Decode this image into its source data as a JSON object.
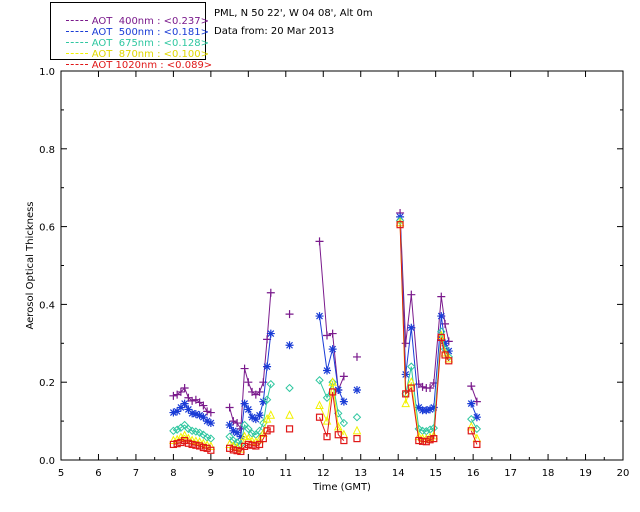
{
  "info": {
    "station": "PML, N 50 22', W 04 08', Alt 0m",
    "date_line": "Data from: 20 Mar 2013"
  },
  "chart_data": {
    "type": "scatter",
    "xlabel": "Time (GMT)",
    "ylabel": "Aerosol Optical Thickness",
    "xlim": [
      5,
      20
    ],
    "ylim": [
      0,
      1.0
    ],
    "xticks": [
      "5",
      "6",
      "7",
      "8",
      "9",
      "10",
      "11",
      "12",
      "13",
      "14",
      "15",
      "16",
      "17",
      "18",
      "19",
      "20"
    ],
    "yticks": [
      "0.0",
      "0.2",
      "0.4",
      "0.6",
      "0.8",
      "1.0"
    ],
    "legend_position": "top-left (outside plot)",
    "series": [
      {
        "name": "AOT  400nm : <0.237>",
        "color": "#7a1a8c",
        "marker": "plus",
        "segments": [
          [
            [
              8.0,
              0.165
            ],
            [
              8.1,
              0.168
            ],
            [
              8.2,
              0.175
            ],
            [
              8.3,
              0.185
            ],
            [
              8.4,
              0.16
            ],
            [
              8.5,
              0.152
            ],
            [
              8.6,
              0.155
            ],
            [
              8.7,
              0.148
            ],
            [
              8.8,
              0.14
            ],
            [
              8.9,
              0.125
            ],
            [
              9.0,
              0.122
            ]
          ],
          [
            [
              9.5,
              0.135
            ],
            [
              9.6,
              0.1
            ],
            [
              9.7,
              0.095
            ],
            [
              9.8,
              0.08
            ],
            [
              9.9,
              0.235
            ],
            [
              10.0,
              0.2
            ],
            [
              10.1,
              0.175
            ],
            [
              10.2,
              0.168
            ],
            [
              10.3,
              0.175
            ],
            [
              10.4,
              0.2
            ],
            [
              10.5,
              0.31
            ],
            [
              10.6,
              0.43
            ]
          ],
          [
            [
              11.1,
              0.375
            ]
          ],
          [
            [
              11.9,
              0.562
            ],
            [
              12.1,
              0.32
            ],
            [
              12.25,
              0.325
            ],
            [
              12.4,
              0.18
            ],
            [
              12.55,
              0.215
            ]
          ],
          [
            [
              12.9,
              0.265
            ]
          ],
          [
            [
              14.05,
              0.635
            ],
            [
              14.2,
              0.3
            ],
            [
              14.35,
              0.425
            ],
            [
              14.55,
              0.195
            ],
            [
              14.65,
              0.188
            ],
            [
              14.75,
              0.185
            ],
            [
              14.85,
              0.185
            ],
            [
              14.95,
              0.198
            ],
            [
              15.15,
              0.42
            ],
            [
              15.25,
              0.35
            ],
            [
              15.35,
              0.305
            ]
          ],
          [
            [
              15.95,
              0.19
            ],
            [
              16.1,
              0.15
            ]
          ]
        ]
      },
      {
        "name": "AOT  500nm : <0.181>",
        "color": "#1a3cd6",
        "marker": "star",
        "segments": [
          [
            [
              8.0,
              0.122
            ],
            [
              8.1,
              0.125
            ],
            [
              8.2,
              0.135
            ],
            [
              8.3,
              0.145
            ],
            [
              8.4,
              0.13
            ],
            [
              8.5,
              0.12
            ],
            [
              8.6,
              0.118
            ],
            [
              8.7,
              0.115
            ],
            [
              8.8,
              0.11
            ],
            [
              8.9,
              0.1
            ],
            [
              9.0,
              0.095
            ]
          ],
          [
            [
              9.5,
              0.09
            ],
            [
              9.6,
              0.075
            ],
            [
              9.7,
              0.07
            ],
            [
              9.8,
              0.06
            ],
            [
              9.9,
              0.145
            ],
            [
              10.0,
              0.13
            ],
            [
              10.1,
              0.11
            ],
            [
              10.2,
              0.105
            ],
            [
              10.3,
              0.115
            ],
            [
              10.4,
              0.15
            ],
            [
              10.5,
              0.24
            ],
            [
              10.6,
              0.325
            ]
          ],
          [
            [
              11.1,
              0.295
            ]
          ],
          [
            [
              11.9,
              0.37
            ],
            [
              12.1,
              0.23
            ],
            [
              12.25,
              0.285
            ],
            [
              12.4,
              0.18
            ],
            [
              12.55,
              0.15
            ]
          ],
          [
            [
              12.9,
              0.18
            ]
          ],
          [
            [
              14.05,
              0.625
            ],
            [
              14.2,
              0.22
            ],
            [
              14.35,
              0.34
            ],
            [
              14.55,
              0.135
            ],
            [
              14.65,
              0.128
            ],
            [
              14.75,
              0.128
            ],
            [
              14.85,
              0.13
            ],
            [
              14.95,
              0.135
            ],
            [
              15.15,
              0.37
            ],
            [
              15.25,
              0.3
            ],
            [
              15.35,
              0.28
            ]
          ],
          [
            [
              15.95,
              0.145
            ],
            [
              16.1,
              0.11
            ]
          ]
        ]
      },
      {
        "name": "AOT  675nm : <0.128>",
        "color": "#2fc7a0",
        "marker": "diamond",
        "segments": [
          [
            [
              8.0,
              0.075
            ],
            [
              8.1,
              0.078
            ],
            [
              8.2,
              0.083
            ],
            [
              8.3,
              0.09
            ],
            [
              8.4,
              0.08
            ],
            [
              8.5,
              0.075
            ],
            [
              8.6,
              0.073
            ],
            [
              8.7,
              0.07
            ],
            [
              8.8,
              0.065
            ],
            [
              8.9,
              0.058
            ],
            [
              9.0,
              0.055
            ]
          ],
          [
            [
              9.5,
              0.06
            ],
            [
              9.6,
              0.05
            ],
            [
              9.7,
              0.045
            ],
            [
              9.8,
              0.04
            ],
            [
              9.9,
              0.09
            ],
            [
              10.0,
              0.08
            ],
            [
              10.1,
              0.068
            ],
            [
              10.2,
              0.065
            ],
            [
              10.3,
              0.075
            ],
            [
              10.4,
              0.095
            ],
            [
              10.5,
              0.155
            ],
            [
              10.6,
              0.195
            ]
          ],
          [
            [
              11.1,
              0.185
            ]
          ],
          [
            [
              11.9,
              0.205
            ],
            [
              12.1,
              0.16
            ],
            [
              12.25,
              0.2
            ],
            [
              12.4,
              0.12
            ],
            [
              12.55,
              0.095
            ]
          ],
          [
            [
              12.9,
              0.11
            ]
          ],
          [
            [
              14.05,
              0.615
            ],
            [
              14.2,
              0.17
            ],
            [
              14.35,
              0.24
            ],
            [
              14.55,
              0.08
            ],
            [
              14.65,
              0.075
            ],
            [
              14.75,
              0.074
            ],
            [
              14.85,
              0.078
            ],
            [
              14.95,
              0.082
            ],
            [
              15.15,
              0.33
            ],
            [
              15.25,
              0.285
            ],
            [
              15.35,
              0.265
            ]
          ],
          [
            [
              15.95,
              0.105
            ],
            [
              16.1,
              0.08
            ]
          ]
        ]
      },
      {
        "name": "AOT  870nm : <0.100>",
        "color": "#f2f200",
        "marker": "triangle",
        "segments": [
          [
            [
              8.0,
              0.05
            ],
            [
              8.1,
              0.052
            ],
            [
              8.2,
              0.058
            ],
            [
              8.3,
              0.063
            ],
            [
              8.4,
              0.055
            ],
            [
              8.5,
              0.05
            ],
            [
              8.6,
              0.048
            ],
            [
              8.7,
              0.046
            ],
            [
              8.8,
              0.042
            ],
            [
              8.9,
              0.038
            ],
            [
              9.0,
              0.035
            ]
          ],
          [
            [
              9.5,
              0.04
            ],
            [
              9.6,
              0.035
            ],
            [
              9.7,
              0.032
            ],
            [
              9.8,
              0.028
            ],
            [
              9.9,
              0.06
            ],
            [
              10.0,
              0.055
            ],
            [
              10.1,
              0.048
            ],
            [
              10.2,
              0.046
            ],
            [
              10.3,
              0.052
            ],
            [
              10.4,
              0.068
            ],
            [
              10.5,
              0.105
            ],
            [
              10.6,
              0.115
            ]
          ],
          [
            [
              11.1,
              0.115
            ]
          ],
          [
            [
              11.9,
              0.14
            ],
            [
              12.1,
              0.1
            ],
            [
              12.25,
              0.2
            ],
            [
              12.4,
              0.085
            ],
            [
              12.55,
              0.065
            ]
          ],
          [
            [
              12.9,
              0.075
            ]
          ],
          [
            [
              14.05,
              0.61
            ],
            [
              14.2,
              0.145
            ],
            [
              14.35,
              0.2
            ],
            [
              14.55,
              0.06
            ],
            [
              14.65,
              0.055
            ],
            [
              14.75,
              0.054
            ],
            [
              14.85,
              0.058
            ],
            [
              14.95,
              0.062
            ],
            [
              15.15,
              0.32
            ],
            [
              15.25,
              0.275
            ],
            [
              15.35,
              0.26
            ]
          ],
          [
            [
              15.95,
              0.085
            ],
            [
              16.1,
              0.055
            ]
          ]
        ]
      },
      {
        "name": "AOT 1020nm : <0.089>",
        "color": "#e01818",
        "marker": "square",
        "segments": [
          [
            [
              8.0,
              0.04
            ],
            [
              8.1,
              0.042
            ],
            [
              8.2,
              0.045
            ],
            [
              8.3,
              0.05
            ],
            [
              8.4,
              0.043
            ],
            [
              8.5,
              0.04
            ],
            [
              8.6,
              0.038
            ],
            [
              8.7,
              0.036
            ],
            [
              8.8,
              0.032
            ],
            [
              8.9,
              0.03
            ],
            [
              9.0,
              0.025
            ]
          ],
          [
            [
              9.5,
              0.03
            ],
            [
              9.6,
              0.026
            ],
            [
              9.7,
              0.024
            ],
            [
              9.8,
              0.022
            ],
            [
              9.9,
              0.035
            ],
            [
              10.0,
              0.04
            ],
            [
              10.1,
              0.038
            ],
            [
              10.2,
              0.036
            ],
            [
              10.3,
              0.04
            ],
            [
              10.4,
              0.055
            ],
            [
              10.5,
              0.075
            ],
            [
              10.6,
              0.08
            ]
          ],
          [
            [
              11.1,
              0.08
            ]
          ],
          [
            [
              11.9,
              0.11
            ],
            [
              12.1,
              0.06
            ],
            [
              12.25,
              0.175
            ],
            [
              12.4,
              0.065
            ],
            [
              12.55,
              0.05
            ]
          ],
          [
            [
              12.9,
              0.055
            ]
          ],
          [
            [
              14.05,
              0.605
            ],
            [
              14.2,
              0.17
            ],
            [
              14.35,
              0.185
            ],
            [
              14.55,
              0.05
            ],
            [
              14.65,
              0.048
            ],
            [
              14.75,
              0.047
            ],
            [
              14.85,
              0.052
            ],
            [
              14.95,
              0.055
            ],
            [
              15.15,
              0.315
            ],
            [
              15.25,
              0.27
            ],
            [
              15.35,
              0.255
            ]
          ],
          [
            [
              15.95,
              0.075
            ],
            [
              16.1,
              0.04
            ]
          ]
        ]
      }
    ]
  }
}
